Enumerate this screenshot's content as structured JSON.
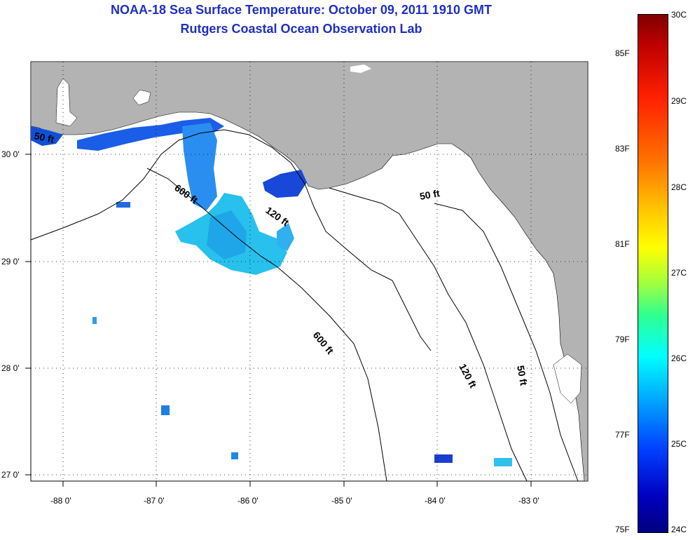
{
  "title": {
    "line1": "NOAA-18 Sea Surface Temperature:  October 09, 2011 1910 GMT",
    "line2": "Rutgers Coastal Ocean Observation Lab"
  },
  "map": {
    "lon_ticks": [
      "-88 0'",
      "-87 0'",
      "-86 0'",
      "-85 0'",
      "-84 0'",
      "-83 0'"
    ],
    "lat_ticks": [
      "30 0'",
      "29 0'",
      "28 0'",
      "27 0'"
    ],
    "contour_labels": [
      "600 ft",
      "120 ft",
      "50 ft",
      "600 ft",
      "120 ft",
      "50 ft",
      "50 ft"
    ],
    "colors": {
      "land": "#b3b3b3",
      "ocean": "#ffffff",
      "grid": "#000000"
    }
  },
  "colorbar": {
    "celsius_labels": [
      "30C",
      "29C",
      "28C",
      "27C",
      "26C",
      "25C",
      "24C"
    ],
    "fahrenheit_labels": [
      "85F",
      "83F",
      "81F",
      "79F",
      "77F",
      "75F"
    ],
    "range_c": [
      24,
      30
    ]
  }
}
